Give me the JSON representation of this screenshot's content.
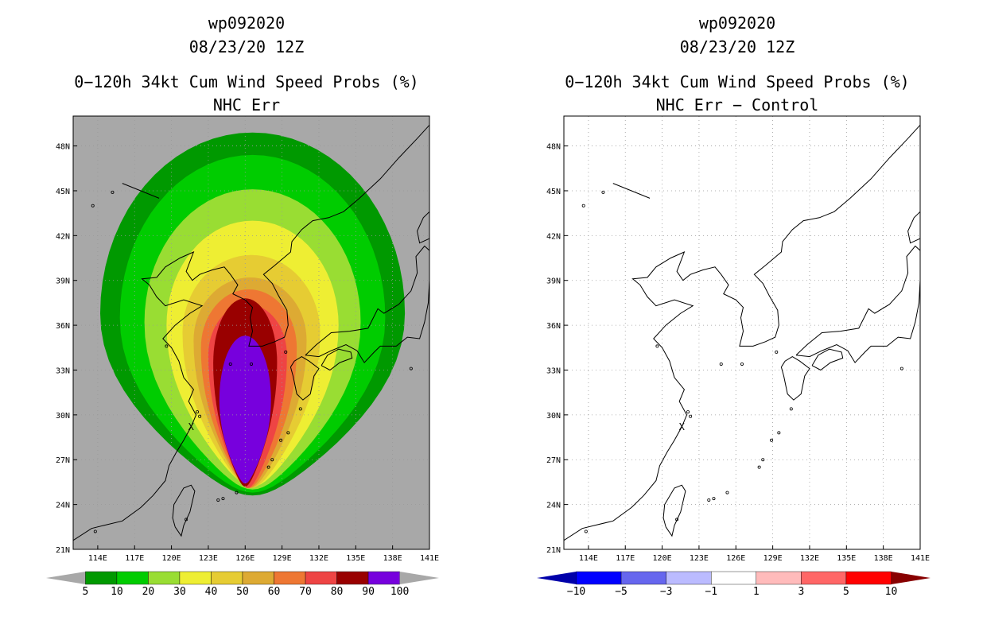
{
  "panels": [
    {
      "storm_id": "wp092020",
      "datetime": "08/23/20 12Z",
      "title": "0−120h 34kt Cum Wind Speed Probs (%)",
      "subtitle": "NHC Err",
      "colorbar": {
        "colors": [
          "#a8a8a8",
          "#009900",
          "#00cc00",
          "#99dd33",
          "#eeee33",
          "#e6cc33",
          "#ddaa33",
          "#ee7733",
          "#ee4444",
          "#990000",
          "#7700dd",
          "#a8a8a8"
        ],
        "labels": [
          "5",
          "10",
          "20",
          "30",
          "40",
          "50",
          "60",
          "70",
          "80",
          "90",
          "100"
        ]
      }
    },
    {
      "storm_id": "wp092020",
      "datetime": "08/23/20 12Z",
      "title": "0−120h 34kt Cum Wind Speed Probs (%)",
      "subtitle": "NHC Err − Control",
      "colorbar": {
        "colors": [
          "#0000aa",
          "#0000ff",
          "#6666ee",
          "#bbbbff",
          "#ffffff",
          "#ffbbbb",
          "#ff6666",
          "#ff0000",
          "#880000"
        ],
        "labels": [
          "−10",
          "−5",
          "−3",
          "−1",
          "1",
          "3",
          "5",
          "10"
        ]
      }
    }
  ],
  "map": {
    "lon_range": [
      112,
      141
    ],
    "lat_range": [
      21,
      50
    ],
    "lon_ticks": [
      "114E",
      "117E",
      "120E",
      "123E",
      "126E",
      "129E",
      "132E",
      "135E",
      "138E",
      "141E"
    ],
    "lat_ticks": [
      "21N",
      "24N",
      "27N",
      "30N",
      "33N",
      "36N",
      "39N",
      "42N",
      "45N",
      "48N"
    ],
    "background_color": "#a8a8a8",
    "probability_contours": [
      {
        "level": 5,
        "color": "#009900",
        "center": [
          126.6,
          36.8
        ],
        "rx": 12.4,
        "ry_up": 12.1,
        "ry_down": 12.2
      },
      {
        "level": 10,
        "color": "#00cc00",
        "center": [
          126.6,
          36.5
        ],
        "rx": 10.8,
        "ry_up": 10.9,
        "ry_down": 11.7
      },
      {
        "level": 20,
        "color": "#99dd33",
        "center": [
          126.6,
          36.2
        ],
        "rx": 8.8,
        "ry_up": 8.9,
        "ry_down": 11.2
      },
      {
        "level": 30,
        "color": "#eeee33",
        "center": [
          126.6,
          36.0
        ],
        "rx": 7.0,
        "ry_up": 7.0,
        "ry_down": 10.8
      },
      {
        "level": 40,
        "color": "#e6cc33",
        "center": [
          126.5,
          35.5
        ],
        "rx": 5.6,
        "ry_up": 5.2,
        "ry_down": 10.4
      },
      {
        "level": 50,
        "color": "#ddaa33",
        "center": [
          126.4,
          35.0
        ],
        "rx": 4.6,
        "ry_up": 4.2,
        "ry_down": 9.9
      },
      {
        "level": 60,
        "color": "#ee7733",
        "center": [
          126.3,
          34.5
        ],
        "rx": 3.9,
        "ry_up": 3.9,
        "ry_down": 9.4
      },
      {
        "level": 70,
        "color": "#ee4444",
        "center": [
          126.2,
          34.0
        ],
        "rx": 3.2,
        "ry_up": 3.4,
        "ry_down": 8.9
      },
      {
        "level": 80,
        "color": "#990000",
        "center": [
          126.0,
          33.5
        ],
        "rx": 2.6,
        "ry_up": 4.3,
        "ry_down": 8.3
      },
      {
        "level": 90,
        "color": "#7700dd",
        "center": [
          126.0,
          31.0
        ],
        "rx": 2.1,
        "ry_up": 4.3,
        "ry_down": 5.6
      }
    ],
    "storm_marker": {
      "symbol": "X",
      "lon": 121.6,
      "lat": 29.2
    }
  }
}
